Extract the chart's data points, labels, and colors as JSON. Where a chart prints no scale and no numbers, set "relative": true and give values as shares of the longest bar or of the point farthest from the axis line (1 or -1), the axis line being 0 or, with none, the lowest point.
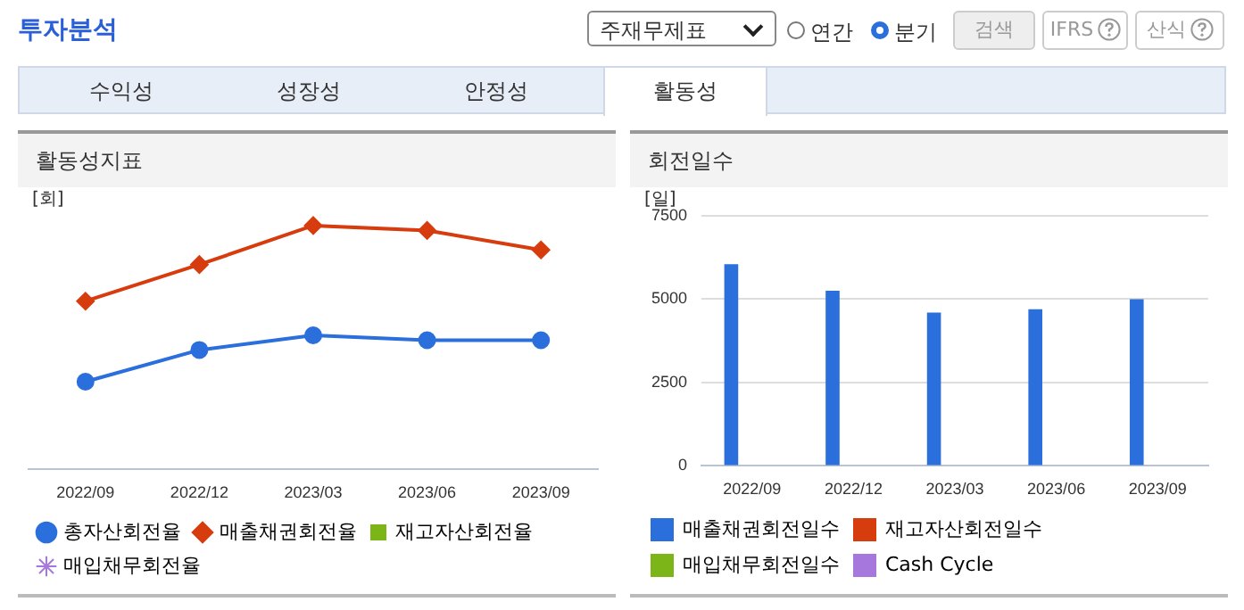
{
  "chart_data": [
    {
      "type": "other",
      "title": "투자분석",
      "annotations": [
        "주재무제표",
        "연간",
        "분기",
        "검색",
        "IFRS",
        "산식",
        "수익성",
        "성장성",
        "안정성",
        "활동성"
      ]
    },
    {
      "type": "line",
      "title": "활동성지표",
      "ylabel": "[회]",
      "categories": [
        "2022/09",
        "2022/12",
        "2023/03",
        "2023/06",
        "2023/09"
      ],
      "relative": true,
      "legend": "bottom",
      "series": [
        {
          "name": "총자산회전율",
          "color": "#2a6fdb",
          "marker": "circle",
          "values": [
            0.36,
            0.49,
            0.55,
            0.53,
            0.53
          ]
        },
        {
          "name": "매출채권회전율",
          "color": "#d63c0e",
          "marker": "diamond",
          "values": [
            0.69,
            0.84,
            1,
            0.98,
            0.9
          ]
        },
        {
          "name": "재고자산회전율",
          "color": "#7cb518",
          "marker": "square",
          "values": [
            null,
            null,
            null,
            null,
            null
          ]
        },
        {
          "name": "매입채무회전율",
          "color": "#a678dd",
          "marker": "star",
          "values": [
            null,
            null,
            null,
            null,
            null
          ]
        }
      ]
    },
    {
      "type": "bar",
      "title": "회전일수",
      "ylabel": "[일]",
      "categories": [
        "2022/09",
        "2022/12",
        "2023/03",
        "2023/06",
        "2023/09"
      ],
      "ylim": [
        0,
        7500
      ],
      "yticks": [
        0,
        2500,
        5000,
        7500
      ],
      "legend": "bottom",
      "grid": "y",
      "series": [
        {
          "name": "매출채권회전일수",
          "color": "#2a6fdb",
          "values": [
            6050,
            5250,
            4600,
            4700,
            5000
          ]
        },
        {
          "name": "재고자산회전일수",
          "color": "#d63c0e",
          "values": [
            null,
            null,
            null,
            null,
            null
          ]
        },
        {
          "name": "매입채무회전일수",
          "color": "#7cb518",
          "values": [
            null,
            null,
            null,
            null,
            null
          ]
        },
        {
          "name": "Cash Cycle",
          "color": "#a678dd",
          "values": [
            null,
            null,
            null,
            null,
            null
          ]
        }
      ]
    }
  ]
}
